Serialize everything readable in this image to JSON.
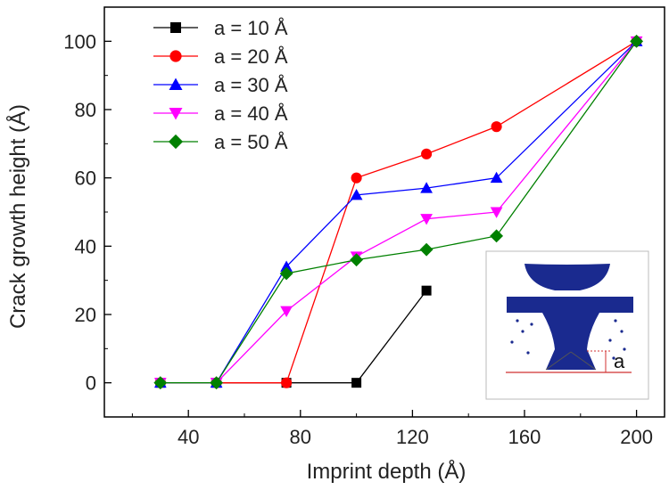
{
  "chart_data": {
    "type": "line",
    "title": "",
    "xlabel": "Imprint depth (Å)",
    "ylabel": "Crack growth height (Å)",
    "xlim": [
      10,
      210
    ],
    "ylim": [
      -10,
      110
    ],
    "xticks": [
      40,
      80,
      120,
      160,
      200
    ],
    "yticks": [
      0,
      20,
      40,
      60,
      80,
      100
    ],
    "legend_position": "top-left",
    "series": [
      {
        "name": "a = 10 Å",
        "color": "#000000",
        "marker": "square",
        "x": [
          30,
          50,
          75,
          100,
          125
        ],
        "y": [
          0,
          0,
          0,
          0,
          27
        ]
      },
      {
        "name": "a = 20 Å",
        "color": "#ff0000",
        "marker": "circle",
        "x": [
          30,
          50,
          75,
          100,
          125,
          150,
          200
        ],
        "y": [
          0,
          0,
          0,
          60,
          67,
          75,
          100
        ]
      },
      {
        "name": "a = 30 Å",
        "color": "#0000ff",
        "marker": "triangle-up",
        "x": [
          30,
          50,
          75,
          100,
          125,
          150,
          200
        ],
        "y": [
          0,
          0,
          34,
          55,
          57,
          60,
          100
        ]
      },
      {
        "name": "a = 40 Å",
        "color": "#ff00ff",
        "marker": "triangle-down",
        "x": [
          30,
          50,
          75,
          100,
          125,
          150,
          200
        ],
        "y": [
          0,
          0,
          21,
          37,
          48,
          50,
          100
        ]
      },
      {
        "name": "a = 50 Å",
        "color": "#008000",
        "marker": "diamond",
        "x": [
          30,
          50,
          75,
          100,
          125,
          150,
          200
        ],
        "y": [
          0,
          0,
          32,
          36,
          39,
          43,
          100
        ]
      }
    ],
    "inset": {
      "label": "a",
      "description_icon": "indentation-inset-icon"
    }
  }
}
